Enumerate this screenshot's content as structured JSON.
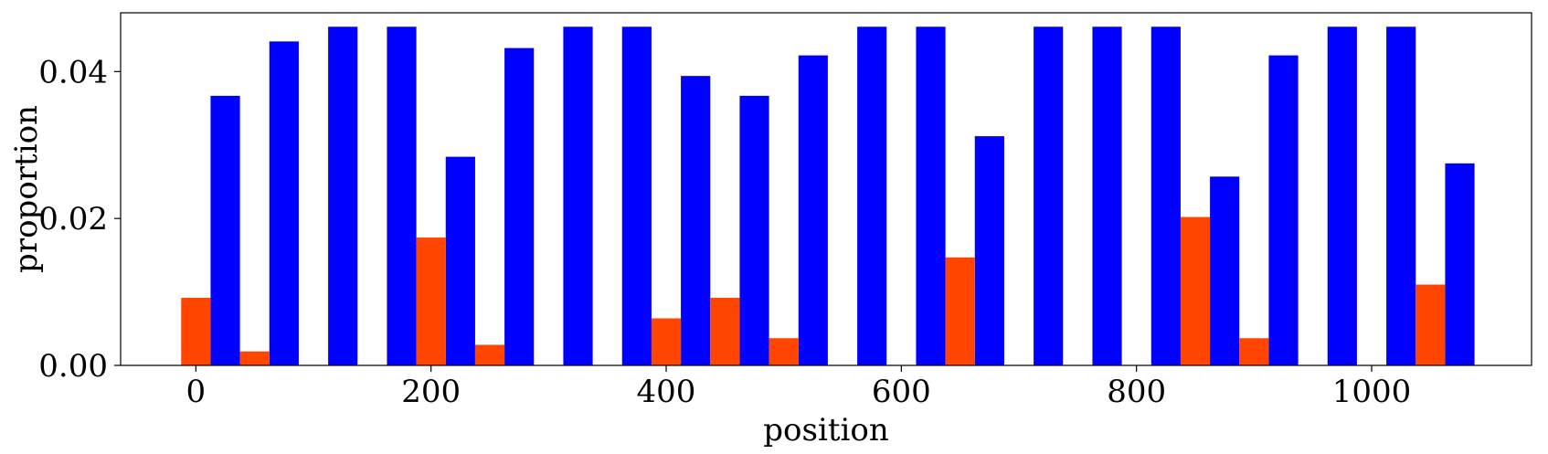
{
  "chart_data": {
    "type": "bar",
    "xlabel": "position",
    "ylabel": "proportion",
    "xlim": [
      -64,
      1136
    ],
    "ylim": [
      0,
      0.048
    ],
    "grid": false,
    "bar_width": 25,
    "x_ticks": [
      {
        "value": 0,
        "label": "0"
      },
      {
        "value": 200,
        "label": "200"
      },
      {
        "value": 400,
        "label": "400"
      },
      {
        "value": 600,
        "label": "600"
      },
      {
        "value": 800,
        "label": "800"
      },
      {
        "value": 1000,
        "label": "1000"
      }
    ],
    "y_ticks": [
      {
        "value": 0.0,
        "label": "0.00"
      },
      {
        "value": 0.02,
        "label": "0.02"
      },
      {
        "value": 0.04,
        "label": "0.04"
      }
    ],
    "series": [
      {
        "color": "#0000ff",
        "x": [
          25,
          75,
          125,
          175,
          225,
          275,
          325,
          375,
          425,
          475,
          525,
          575,
          625,
          675,
          725,
          775,
          825,
          875,
          925,
          975,
          1025,
          1075
        ],
        "values": [
          0.0367,
          0.0441,
          0.0461,
          0.0461,
          0.0284,
          0.0432,
          0.0461,
          0.0461,
          0.0394,
          0.0367,
          0.0422,
          0.0461,
          0.0461,
          0.0312,
          0.0461,
          0.0461,
          0.0461,
          0.0257,
          0.0422,
          0.0461,
          0.0461,
          0.0275
        ]
      },
      {
        "color": "#ff4500",
        "x": [
          0,
          50,
          100,
          150,
          200,
          250,
          300,
          350,
          400,
          450,
          500,
          550,
          600,
          650,
          700,
          750,
          800,
          850,
          900,
          950,
          1000,
          1050
        ],
        "values": [
          0.0092,
          0.0019,
          0.0,
          0.0,
          0.0174,
          0.0028,
          0.0,
          0.0,
          0.0064,
          0.0092,
          0.0037,
          0.0,
          0.0,
          0.0147,
          0.0,
          0.0,
          0.0,
          0.0202,
          0.0037,
          0.0,
          0.0,
          0.011
        ]
      }
    ]
  }
}
